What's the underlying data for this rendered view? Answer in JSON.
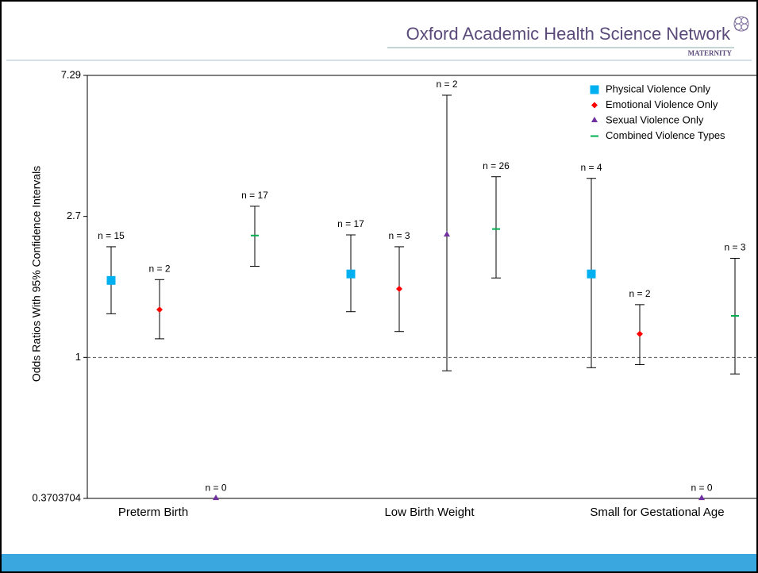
{
  "header": {
    "title": "Oxford Academic Health Science Network",
    "subtitle": "MATERNITY"
  },
  "chart_data": {
    "type": "errorbar",
    "y_label": "Odds Ratios With 95% Confidence Intervals",
    "log_scale": true,
    "ylim": [
      0.3703704,
      7.29
    ],
    "yticks": [
      0.3703704,
      1,
      2.7,
      7.29
    ],
    "legend": "top-right",
    "categories": [
      "Preterm Birth",
      "Low Birth Weight",
      "Small for Gestational Age"
    ],
    "series": [
      {
        "name": "Physical Violence Only",
        "color": "#00b0f0",
        "marker": "square",
        "values": [
          1.72,
          1.8,
          1.8
        ],
        "ci_low": [
          1.36,
          1.38,
          0.93
        ],
        "ci_high": [
          2.18,
          2.37,
          3.53
        ],
        "n_labels": [
          "n = 15",
          "n = 17",
          "n = 4"
        ]
      },
      {
        "name": "Emotional Violence Only",
        "color": "#ff0000",
        "marker": "diamond",
        "values": [
          1.4,
          1.62,
          1.18
        ],
        "ci_low": [
          1.14,
          1.2,
          0.95
        ],
        "ci_high": [
          1.73,
          2.18,
          1.45
        ],
        "n_labels": [
          "n = 2",
          "n = 3",
          "n = 2"
        ]
      },
      {
        "name": "Sexual Violence Only",
        "color": "#7030a0",
        "marker": "triangle",
        "values": [
          0.37,
          2.37,
          0.37
        ],
        "ci_low": [
          null,
          0.91,
          null
        ],
        "ci_high": [
          null,
          6.34,
          null
        ],
        "n_labels": [
          "n = 0",
          "n = 2",
          "n = 0"
        ]
      },
      {
        "name": "Combined Violence Types",
        "color": "#00b050",
        "marker": "dash",
        "values": [
          2.36,
          2.47,
          1.34
        ],
        "ci_low": [
          1.9,
          1.75,
          0.89
        ],
        "ci_high": [
          2.9,
          3.57,
          2.01
        ],
        "n_labels": [
          "n = 17",
          "n = 26",
          "n = 3"
        ]
      }
    ]
  }
}
